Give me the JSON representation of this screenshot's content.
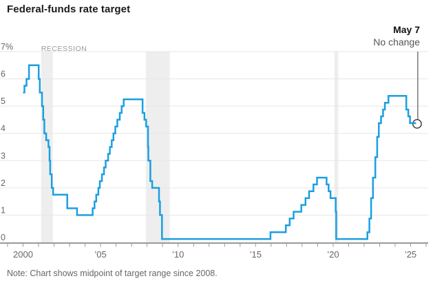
{
  "header": {
    "title": "Federal-funds rate target"
  },
  "annotation": {
    "date": "May 7",
    "status": "No change"
  },
  "note": "Note: Chart shows midpoint of target range since 2008.",
  "chart_data": {
    "type": "line",
    "step": true,
    "title": "Federal-funds rate target",
    "unit": "%",
    "xlim": [
      1998.5,
      2026.2
    ],
    "ylim": [
      0,
      7
    ],
    "grid": true,
    "recession_label": "RECESSION",
    "y_ticks": [
      {
        "value": 0,
        "label": "0"
      },
      {
        "value": 1,
        "label": "1"
      },
      {
        "value": 2,
        "label": "2"
      },
      {
        "value": 3,
        "label": "3"
      },
      {
        "value": 4,
        "label": "4"
      },
      {
        "value": 5,
        "label": "5"
      },
      {
        "value": 6,
        "label": "6"
      },
      {
        "value": 7,
        "label": "7%"
      }
    ],
    "x_ticks": [
      {
        "year": 2000,
        "label": "2000"
      },
      {
        "year": 2005,
        "label": "’05"
      },
      {
        "year": 2010,
        "label": "’10"
      },
      {
        "year": 2015,
        "label": "’15"
      },
      {
        "year": 2020,
        "label": "’20"
      },
      {
        "year": 2025,
        "label": "’25"
      }
    ],
    "minor_tick_years": {
      "start": 1999,
      "end": 2026
    },
    "recessions": [
      {
        "start": 2001.17,
        "end": 2001.92
      },
      {
        "start": 2007.92,
        "end": 2009.46
      },
      {
        "start": 2020.08,
        "end": 2020.33
      }
    ],
    "series": [
      {
        "name": "Federal-funds rate target (midpoint of range since 2008)",
        "points": [
          [
            2000.0,
            5.5
          ],
          [
            2000.09,
            5.75
          ],
          [
            2000.22,
            6.0
          ],
          [
            2000.38,
            6.5
          ],
          [
            2001.01,
            6.0
          ],
          [
            2001.08,
            5.5
          ],
          [
            2001.22,
            5.0
          ],
          [
            2001.3,
            4.5
          ],
          [
            2001.37,
            4.0
          ],
          [
            2001.49,
            3.75
          ],
          [
            2001.64,
            3.5
          ],
          [
            2001.71,
            3.0
          ],
          [
            2001.75,
            2.5
          ],
          [
            2001.85,
            2.0
          ],
          [
            2001.94,
            1.75
          ],
          [
            2002.85,
            1.25
          ],
          [
            2003.48,
            1.0
          ],
          [
            2004.49,
            1.25
          ],
          [
            2004.61,
            1.5
          ],
          [
            2004.72,
            1.75
          ],
          [
            2004.86,
            2.0
          ],
          [
            2004.95,
            2.25
          ],
          [
            2005.09,
            2.5
          ],
          [
            2005.22,
            2.75
          ],
          [
            2005.33,
            3.0
          ],
          [
            2005.49,
            3.25
          ],
          [
            2005.6,
            3.5
          ],
          [
            2005.72,
            3.75
          ],
          [
            2005.83,
            4.0
          ],
          [
            2005.95,
            4.25
          ],
          [
            2006.08,
            4.5
          ],
          [
            2006.24,
            4.75
          ],
          [
            2006.36,
            5.0
          ],
          [
            2006.49,
            5.25
          ],
          [
            2007.71,
            4.75
          ],
          [
            2007.83,
            4.5
          ],
          [
            2007.94,
            4.25
          ],
          [
            2008.06,
            3.5
          ],
          [
            2008.08,
            3.0
          ],
          [
            2008.21,
            2.25
          ],
          [
            2008.33,
            2.0
          ],
          [
            2008.77,
            1.5
          ],
          [
            2008.83,
            1.0
          ],
          [
            2008.96,
            0.125
          ],
          [
            2015.96,
            0.375
          ],
          [
            2016.95,
            0.625
          ],
          [
            2017.2,
            0.875
          ],
          [
            2017.45,
            1.125
          ],
          [
            2017.95,
            1.375
          ],
          [
            2018.22,
            1.625
          ],
          [
            2018.45,
            1.875
          ],
          [
            2018.73,
            2.125
          ],
          [
            2018.96,
            2.375
          ],
          [
            2019.58,
            2.125
          ],
          [
            2019.71,
            1.875
          ],
          [
            2019.83,
            1.625
          ],
          [
            2020.17,
            1.125
          ],
          [
            2020.2,
            0.125
          ],
          [
            2022.21,
            0.375
          ],
          [
            2022.34,
            0.875
          ],
          [
            2022.45,
            1.625
          ],
          [
            2022.57,
            2.375
          ],
          [
            2022.72,
            3.125
          ],
          [
            2022.84,
            3.875
          ],
          [
            2022.95,
            4.375
          ],
          [
            2023.09,
            4.625
          ],
          [
            2023.22,
            4.875
          ],
          [
            2023.34,
            5.125
          ],
          [
            2023.57,
            5.375
          ],
          [
            2024.72,
            4.875
          ],
          [
            2024.85,
            4.625
          ],
          [
            2024.96,
            4.375
          ],
          [
            2025.35,
            4.375
          ]
        ]
      }
    ],
    "end_marker": {
      "x": 2025.35,
      "y": 4.375,
      "date": "May 7",
      "text": "No change"
    },
    "colors": {
      "line": "#1A9FE0",
      "gridline": "#e6e6e6",
      "recession_band": "#eeeeee",
      "axis": "#999999",
      "tick_label": "#666666",
      "recession_text": "#9a9a9a",
      "annotation_line": "#555555",
      "marker_stroke": "#333333",
      "marker_fill": "#ffffff"
    }
  }
}
